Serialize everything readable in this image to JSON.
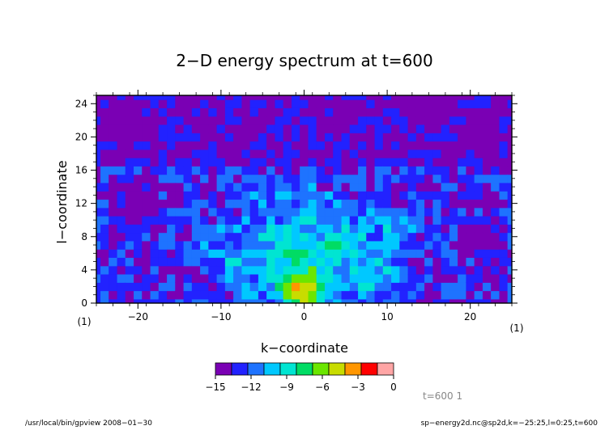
{
  "chart_data": {
    "type": "heatmap",
    "title": "2−D energy spectrum at t=600",
    "xlabel": "k−coordinate",
    "ylabel": "l−coordinate",
    "xlim": [
      -25,
      25
    ],
    "ylim": [
      0,
      25
    ],
    "xticks": [
      -20,
      -10,
      0,
      10,
      20
    ],
    "xtick_labels": [
      "−20",
      "−10",
      "0",
      "10",
      "20"
    ],
    "yticks": [
      0,
      4,
      8,
      12,
      16,
      20,
      24
    ],
    "ytick_labels": [
      "0",
      "4",
      "8",
      "12",
      "16",
      "20",
      "24"
    ],
    "x_unit": "(1)",
    "y_unit": "(1)",
    "levels": [
      -15,
      -14,
      -13,
      -12,
      -11,
      -10,
      -9,
      -8,
      -7,
      -6,
      -5,
      -4,
      -3,
      -2,
      -1,
      0
    ],
    "colorbar_ticks": [
      -15,
      -12,
      -9,
      -6,
      -3,
      0
    ],
    "colorbar_labels": [
      "−15",
      "−12",
      "−9",
      "−6",
      "−3",
      "0"
    ],
    "colors": [
      "#7a00b4",
      "#2222ff",
      "#1e73ff",
      "#00c8ff",
      "#00e5d2",
      "#00dc64",
      "#6be600",
      "#c8dc00",
      "#ff9600",
      "#ff0000",
      "#ffa5a5"
    ],
    "field": "log10 energy",
    "features": [
      {
        "k": 0,
        "l": 1.5,
        "value": -6.5
      },
      {
        "k": -2,
        "l": 6,
        "value": -10.5
      },
      {
        "k": 4,
        "l": 7,
        "value": -10.6
      },
      {
        "k": 8,
        "l": 4,
        "value": -10.8
      },
      {
        "k": -8,
        "l": 5,
        "value": -11.6
      },
      {
        "k": 11,
        "l": 9,
        "value": -11.7
      },
      {
        "k": -22,
        "l": 21,
        "value": -15.5
      },
      {
        "k": 21,
        "l": 21,
        "value": -15.5
      },
      {
        "k": -20,
        "l": 13,
        "value": -15.3
      },
      {
        "k": 22,
        "l": 8,
        "value": -15.3
      },
      {
        "k": 15,
        "l": 24,
        "value": -15.2
      }
    ],
    "grid": false
  },
  "annotation": "t=600 1",
  "footer_left": "/usr/local/bin/gpview   2008−01−30",
  "footer_right": "sp−energy2d.nc@sp2d,k=−25:25,l=0:25,t=600"
}
